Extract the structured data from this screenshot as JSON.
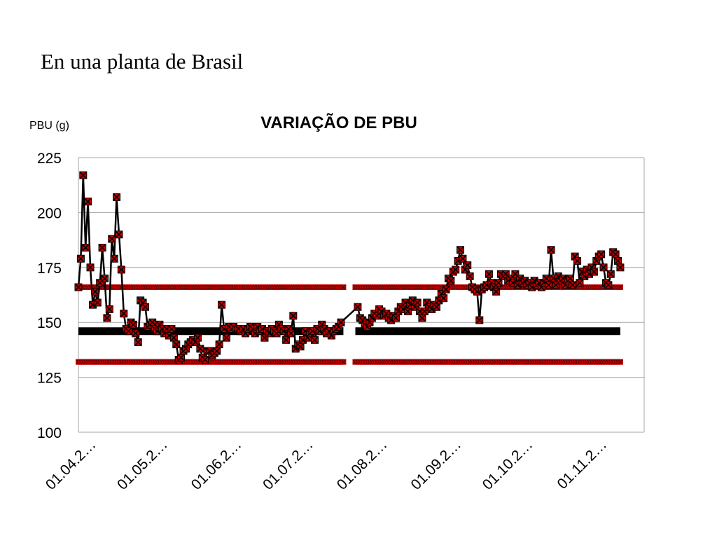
{
  "slide": {
    "title": "En una planta de Brasil"
  },
  "chart_data": {
    "type": "line",
    "title": "VARIAÇÃO DE PBU",
    "ylabel": "PBU (g)",
    "xlabel": "",
    "ylim": [
      100,
      225
    ],
    "yticks": [
      100,
      125,
      150,
      175,
      200,
      225
    ],
    "x_tick_labels": [
      "01.04.2…",
      "01.05.2…",
      "01.06.2…",
      "01.07.2…",
      "01.08.2…",
      "01.09.2…",
      "01.10.2…",
      "01.11.2…"
    ],
    "grid": true,
    "legend": "none",
    "colors": {
      "series": "#000000",
      "marker": "#c00000",
      "marker_cross": "#000000",
      "limits": "#c00000",
      "target": "#000000"
    },
    "x_start": "2012-04-01",
    "x_end": "2012-11-24",
    "series": [
      {
        "style": "line-with-markers",
        "points": [
          [
            "2012-04-01",
            166
          ],
          [
            "2012-04-02",
            179
          ],
          [
            "2012-04-03",
            217
          ],
          [
            "2012-04-04",
            184
          ],
          [
            "2012-04-05",
            205
          ],
          [
            "2012-04-06",
            175
          ],
          [
            "2012-04-07",
            158
          ],
          [
            "2012-04-08",
            164
          ],
          [
            "2012-04-09",
            159
          ],
          [
            "2012-04-10",
            168
          ],
          [
            "2012-04-11",
            184
          ],
          [
            "2012-04-12",
            170
          ],
          [
            "2012-04-13",
            152
          ],
          [
            "2012-04-14",
            156
          ],
          [
            "2012-04-15",
            188
          ],
          [
            "2012-04-16",
            179
          ],
          [
            "2012-04-17",
            207
          ],
          [
            "2012-04-18",
            190
          ],
          [
            "2012-04-19",
            174
          ],
          [
            "2012-04-20",
            154
          ],
          [
            "2012-04-21",
            147
          ],
          [
            "2012-04-22",
            146
          ],
          [
            "2012-04-23",
            150
          ],
          [
            "2012-04-24",
            149
          ],
          [
            "2012-04-25",
            145
          ],
          [
            "2012-04-26",
            141
          ],
          [
            "2012-04-27",
            160
          ],
          [
            "2012-04-28",
            159
          ],
          [
            "2012-04-29",
            157
          ],
          [
            "2012-04-30",
            148
          ],
          [
            "2012-05-01",
            149
          ],
          [
            "2012-05-02",
            150
          ],
          [
            "2012-05-03",
            147
          ],
          [
            "2012-05-04",
            146
          ],
          [
            "2012-05-05",
            149
          ],
          [
            "2012-05-06",
            147
          ],
          [
            "2012-05-07",
            145
          ],
          [
            "2012-05-08",
            147
          ],
          [
            "2012-05-09",
            144
          ],
          [
            "2012-05-10",
            147
          ],
          [
            "2012-05-11",
            143
          ],
          [
            "2012-05-12",
            140
          ],
          [
            "2012-05-13",
            133
          ],
          [
            "2012-05-14",
            134
          ],
          [
            "2012-05-15",
            137
          ],
          [
            "2012-05-16",
            138
          ],
          [
            "2012-05-17",
            140
          ],
          [
            "2012-05-18",
            141
          ],
          [
            "2012-05-19",
            142
          ],
          [
            "2012-05-20",
            141
          ],
          [
            "2012-05-21",
            143
          ],
          [
            "2012-05-22",
            138
          ],
          [
            "2012-05-23",
            134
          ],
          [
            "2012-05-24",
            133
          ],
          [
            "2012-05-25",
            137
          ],
          [
            "2012-05-26",
            137
          ],
          [
            "2012-05-27",
            135
          ],
          [
            "2012-05-28",
            136
          ],
          [
            "2012-05-29",
            137
          ],
          [
            "2012-05-30",
            140
          ],
          [
            "2012-05-31",
            158
          ],
          [
            "2012-06-01",
            147
          ],
          [
            "2012-06-02",
            143
          ],
          [
            "2012-06-03",
            148
          ],
          [
            "2012-06-04",
            147
          ],
          [
            "2012-06-05",
            148
          ],
          [
            "2012-06-06",
            147
          ],
          [
            "2012-06-07",
            147
          ],
          [
            "2012-06-08",
            146
          ],
          [
            "2012-06-09",
            147
          ],
          [
            "2012-06-10",
            145
          ],
          [
            "2012-06-11",
            147
          ],
          [
            "2012-06-12",
            148
          ],
          [
            "2012-06-13",
            147
          ],
          [
            "2012-06-14",
            145
          ],
          [
            "2012-06-15",
            148
          ],
          [
            "2012-06-16",
            146
          ],
          [
            "2012-06-17",
            147
          ],
          [
            "2012-06-18",
            143
          ],
          [
            "2012-06-19",
            146
          ],
          [
            "2012-06-20",
            145
          ],
          [
            "2012-06-21",
            147
          ],
          [
            "2012-06-22",
            146
          ],
          [
            "2012-06-23",
            145
          ],
          [
            "2012-06-24",
            149
          ],
          [
            "2012-06-25",
            147
          ],
          [
            "2012-06-26",
            146
          ],
          [
            "2012-06-27",
            142
          ],
          [
            "2012-06-28",
            147
          ],
          [
            "2012-06-29",
            145
          ],
          [
            "2012-06-30",
            153
          ],
          [
            "2012-07-01",
            138
          ],
          [
            "2012-07-02",
            140
          ],
          [
            "2012-07-03",
            139
          ],
          [
            "2012-07-04",
            142
          ],
          [
            "2012-07-05",
            146
          ],
          [
            "2012-07-06",
            143
          ],
          [
            "2012-07-07",
            145
          ],
          [
            "2012-07-08",
            146
          ],
          [
            "2012-07-09",
            142
          ],
          [
            "2012-07-10",
            147
          ],
          [
            "2012-07-11",
            146
          ],
          [
            "2012-07-12",
            149
          ],
          [
            "2012-07-13",
            147
          ],
          [
            "2012-07-14",
            145
          ],
          [
            "2012-07-15",
            146
          ],
          [
            "2012-07-16",
            144
          ],
          [
            "2012-07-17",
            146
          ],
          [
            "2012-07-18",
            147
          ],
          [
            "2012-07-19",
            148
          ],
          [
            "2012-07-20",
            150
          ],
          [
            "2012-07-27",
            157
          ],
          [
            "2012-07-28",
            152
          ],
          [
            "2012-07-29",
            151
          ],
          [
            "2012-07-30",
            149
          ],
          [
            "2012-07-31",
            148
          ],
          [
            "2012-08-01",
            150
          ],
          [
            "2012-08-02",
            152
          ],
          [
            "2012-08-03",
            154
          ],
          [
            "2012-08-04",
            153
          ],
          [
            "2012-08-05",
            156
          ],
          [
            "2012-08-06",
            155
          ],
          [
            "2012-08-07",
            153
          ],
          [
            "2012-08-08",
            154
          ],
          [
            "2012-08-09",
            152
          ],
          [
            "2012-08-10",
            151
          ],
          [
            "2012-08-11",
            153
          ],
          [
            "2012-08-12",
            152
          ],
          [
            "2012-08-13",
            155
          ],
          [
            "2012-08-14",
            157
          ],
          [
            "2012-08-15",
            156
          ],
          [
            "2012-08-16",
            159
          ],
          [
            "2012-08-17",
            155
          ],
          [
            "2012-08-18",
            158
          ],
          [
            "2012-08-19",
            160
          ],
          [
            "2012-08-20",
            157
          ],
          [
            "2012-08-21",
            159
          ],
          [
            "2012-08-22",
            155
          ],
          [
            "2012-08-23",
            152
          ],
          [
            "2012-08-24",
            155
          ],
          [
            "2012-08-25",
            159
          ],
          [
            "2012-08-26",
            157
          ],
          [
            "2012-08-27",
            156
          ],
          [
            "2012-08-28",
            158
          ],
          [
            "2012-08-29",
            157
          ],
          [
            "2012-08-30",
            160
          ],
          [
            "2012-08-31",
            163
          ],
          [
            "2012-09-01",
            161
          ],
          [
            "2012-09-02",
            165
          ],
          [
            "2012-09-03",
            170
          ],
          [
            "2012-09-04",
            169
          ],
          [
            "2012-09-05",
            173
          ],
          [
            "2012-09-06",
            174
          ],
          [
            "2012-09-07",
            178
          ],
          [
            "2012-09-08",
            183
          ],
          [
            "2012-09-09",
            179
          ],
          [
            "2012-09-10",
            174
          ],
          [
            "2012-09-11",
            176
          ],
          [
            "2012-09-12",
            171
          ],
          [
            "2012-09-13",
            166
          ],
          [
            "2012-09-14",
            165
          ],
          [
            "2012-09-15",
            164
          ],
          [
            "2012-09-16",
            151
          ],
          [
            "2012-09-17",
            165
          ],
          [
            "2012-09-18",
            166
          ],
          [
            "2012-09-19",
            167
          ],
          [
            "2012-09-20",
            172
          ],
          [
            "2012-09-21",
            168
          ],
          [
            "2012-09-22",
            166
          ],
          [
            "2012-09-23",
            164
          ],
          [
            "2012-09-24",
            168
          ],
          [
            "2012-09-25",
            172
          ],
          [
            "2012-09-26",
            171
          ],
          [
            "2012-09-27",
            172
          ],
          [
            "2012-09-28",
            169
          ],
          [
            "2012-09-29",
            170
          ],
          [
            "2012-09-30",
            168
          ],
          [
            "2012-10-01",
            172
          ],
          [
            "2012-10-02",
            167
          ],
          [
            "2012-10-03",
            170
          ],
          [
            "2012-10-04",
            168
          ],
          [
            "2012-10-05",
            169
          ],
          [
            "2012-10-06",
            167
          ],
          [
            "2012-10-07",
            168
          ],
          [
            "2012-10-08",
            166
          ],
          [
            "2012-10-09",
            169
          ],
          [
            "2012-10-10",
            167
          ],
          [
            "2012-10-11",
            168
          ],
          [
            "2012-10-12",
            166
          ],
          [
            "2012-10-13",
            168
          ],
          [
            "2012-10-14",
            170
          ],
          [
            "2012-10-15",
            167
          ],
          [
            "2012-10-16",
            183
          ],
          [
            "2012-10-17",
            170
          ],
          [
            "2012-10-18",
            167
          ],
          [
            "2012-10-19",
            171
          ],
          [
            "2012-10-20",
            169
          ],
          [
            "2012-10-21",
            170
          ],
          [
            "2012-10-22",
            167
          ],
          [
            "2012-10-23",
            169
          ],
          [
            "2012-10-24",
            170
          ],
          [
            "2012-10-25",
            167
          ],
          [
            "2012-10-26",
            180
          ],
          [
            "2012-10-27",
            178
          ],
          [
            "2012-10-28",
            168
          ],
          [
            "2012-10-29",
            173
          ],
          [
            "2012-10-30",
            171
          ],
          [
            "2012-10-31",
            174
          ],
          [
            "2012-11-01",
            172
          ],
          [
            "2012-11-02",
            175
          ],
          [
            "2012-11-03",
            173
          ],
          [
            "2012-11-04",
            178
          ],
          [
            "2012-11-05",
            180
          ],
          [
            "2012-11-06",
            181
          ],
          [
            "2012-11-07",
            175
          ],
          [
            "2012-11-08",
            168
          ],
          [
            "2012-11-09",
            167
          ],
          [
            "2012-11-10",
            172
          ],
          [
            "2012-11-11",
            182
          ],
          [
            "2012-11-12",
            181
          ],
          [
            "2012-11-13",
            178
          ],
          [
            "2012-11-14",
            175
          ]
        ]
      },
      {
        "style": "upper-limit-markers",
        "value": 166,
        "x_range": [
          "2012-04-01",
          "2012-11-14"
        ],
        "gap": [
          "2012-07-21",
          "2012-07-26"
        ]
      },
      {
        "style": "target-thick-line",
        "value": 146,
        "x_range": [
          "2012-04-01",
          "2012-11-14"
        ],
        "gap": [
          "2012-07-21",
          "2012-07-26"
        ]
      },
      {
        "style": "lower-limit-markers",
        "value": 132,
        "x_range": [
          "2012-04-01",
          "2012-11-14"
        ],
        "gap": [
          "2012-07-21",
          "2012-07-26"
        ]
      }
    ]
  }
}
